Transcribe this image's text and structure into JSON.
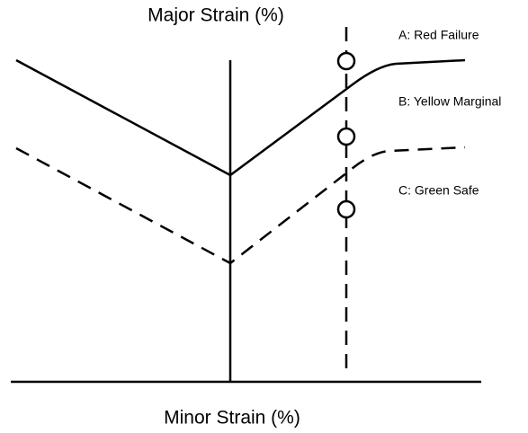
{
  "axes": {
    "y_label": "Major Strain (%)",
    "x_label": "Minor Strain (%)"
  },
  "zones": [
    {
      "label": "A: Red Failure"
    },
    {
      "label": "B: Yellow Marginal"
    },
    {
      "label": "C: Green Safe"
    }
  ]
}
